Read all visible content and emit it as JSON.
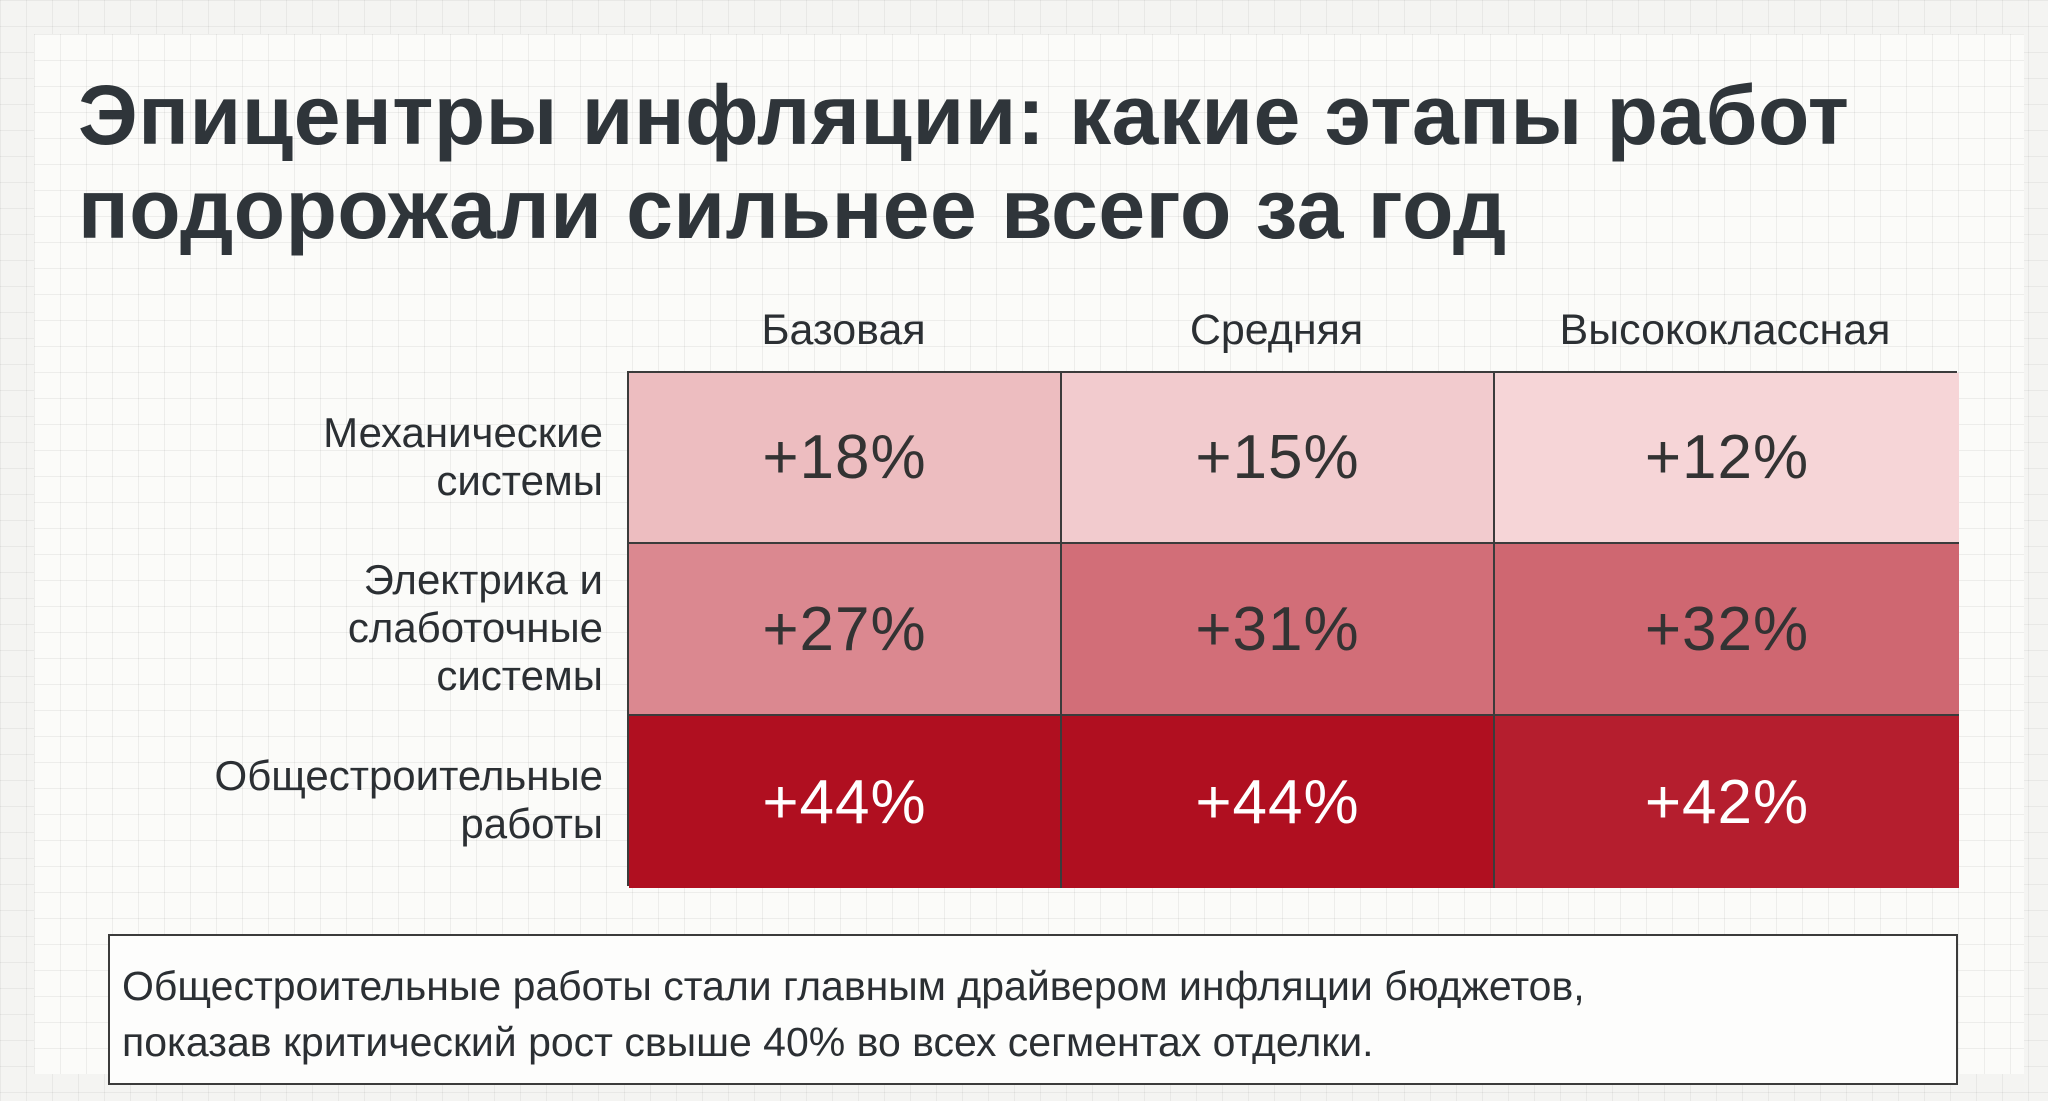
{
  "title": "Эпицентры инфляции: какие этапы работ подорожали сильнее всего за год",
  "chart_data": {
    "type": "heatmap",
    "title": "Эпицентры инфляции: какие этапы работ подорожали сильнее всего за год",
    "columns": [
      "Базовая",
      "Средняя",
      "Высококлассная"
    ],
    "rows": [
      {
        "label_lines": [
          "Механические",
          "системы"
        ],
        "label": "Механические системы"
      },
      {
        "label_lines": [
          "Электрика и",
          "слаботочные",
          "системы"
        ],
        "label": "Электрика и слаботочные системы"
      },
      {
        "label_lines": [
          "Общестроительные",
          "работы"
        ],
        "label": "Общестроительные работы"
      }
    ],
    "values": [
      [
        18,
        15,
        12
      ],
      [
        27,
        31,
        32
      ],
      [
        44,
        44,
        42
      ]
    ],
    "value_labels": [
      [
        "+18%",
        "+15%",
        "+12%"
      ],
      [
        "+27%",
        "+31%",
        "+32%"
      ],
      [
        "+44%",
        "+44%",
        "+42%"
      ]
    ],
    "unit": "%",
    "colors": {
      "low": "#f6d5d7",
      "high": "#b00f20",
      "text_dark": "#333333",
      "text_light": "#ffffff"
    }
  },
  "note": {
    "lines": [
      "Общестроительные работы стали главным драйвером инфляции бюджетов,",
      "показав критический рост свыше 40% во всех сегментах отделки."
    ]
  }
}
